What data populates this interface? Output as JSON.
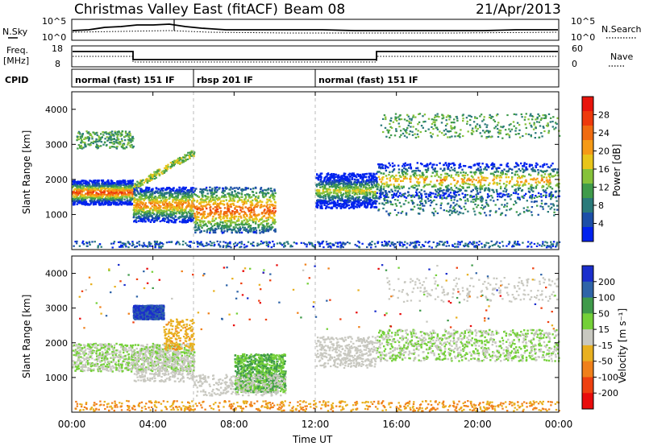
{
  "header": {
    "title": "Christmas Valley East (fitACF)",
    "beam": "Beam 08",
    "date": "21/Apr/2013"
  },
  "noise_panel": {
    "left_label": "N.Sky",
    "right_label": "N.Search",
    "tick_top": "10^5",
    "tick_bottom": "10^0",
    "right_tick_top": "10^5",
    "right_tick_bottom": "10^0"
  },
  "freq_panel": {
    "left_label_1": "Freq.",
    "left_label_2": "[MHz]",
    "right_label": "Nave",
    "tick_top": "18",
    "tick_bottom": "8",
    "right_tick_top": "60",
    "right_tick_bottom": "0"
  },
  "cpid_panel": {
    "label": "CPID",
    "segments": [
      {
        "label": "normal (fast) 151 IF",
        "start_hour": 0,
        "end_hour": 6
      },
      {
        "label": "rbsp 201 IF",
        "start_hour": 6,
        "end_hour": 12
      },
      {
        "label": "normal (fast) 151 IF",
        "start_hour": 12,
        "end_hour": 24
      }
    ]
  },
  "power_panel": {
    "ylabel": "Slant Range [km]",
    "yticks": [
      "1000",
      "2000",
      "3000",
      "4000"
    ],
    "colorbar_label": "Power [dB]",
    "colorbar_ticks": [
      "4",
      "8",
      "12",
      "16",
      "20",
      "24",
      "28"
    ],
    "colors": [
      "#0022ee",
      "#1c4fa8",
      "#2a7a7a",
      "#3f9b4a",
      "#86c23a",
      "#e8c51a",
      "#f59a16",
      "#f06b10",
      "#ee3a0c",
      "#e8140c"
    ]
  },
  "velocity_panel": {
    "ylabel": "Slant Range [km]",
    "yticks": [
      "1000",
      "2000",
      "3000",
      "4000"
    ],
    "colorbar_label": "Velocity [m s⁻¹]",
    "colorbar_ticks": [
      "200",
      "100",
      "50",
      "15",
      "-15",
      "-50",
      "-100",
      "-200"
    ],
    "colors": [
      "#1a2ecc",
      "#2f64a8",
      "#3f9a4a",
      "#74d038",
      "#c8c8c0",
      "#e8b020",
      "#f0801a",
      "#ee4010",
      "#e80c0c"
    ]
  },
  "xaxis": {
    "label": "Time UT",
    "ticks": [
      "00:00",
      "04:00",
      "08:00",
      "12:00",
      "16:00",
      "20:00",
      "00:00"
    ]
  },
  "chart_data": {
    "type": "heatmap",
    "title": "Christmas Valley East (fitACF)",
    "xlabel": "Time UT",
    "ylabel": "Slant Range [km]",
    "xlim": [
      0,
      24
    ],
    "ylim": [
      0,
      4500
    ],
    "series": [
      {
        "name": "Power [dB]",
        "range": [
          0,
          30
        ],
        "main_echo_bands": [
          {
            "start_hour": 0.0,
            "end_hour": 3.0,
            "range_km": [
              1500,
              1800
            ],
            "power_db": 26
          },
          {
            "start_hour": 3.0,
            "end_hour": 6.0,
            "range_km": [
              1000,
              1600
            ],
            "power_db": 22
          },
          {
            "start_hour": 6.0,
            "end_hour": 10.0,
            "range_km": [
              700,
              1600
            ],
            "power_db": 24
          },
          {
            "start_hour": 12.0,
            "end_hour": 15.0,
            "range_km": [
              1400,
              2000
            ],
            "power_db": 16
          },
          {
            "start_hour": 15.0,
            "end_hour": 24.0,
            "range_km": [
              1700,
              2300
            ],
            "power_db": 20
          }
        ]
      },
      {
        "name": "Velocity [m s-1]",
        "range": [
          -200,
          200
        ],
        "main_echo_bands": [
          {
            "start_hour": 0.0,
            "end_hour": 6.0,
            "range_km": [
              1200,
              2000
            ],
            "velocity": 0
          },
          {
            "start_hour": 3.0,
            "end_hour": 4.5,
            "range_km": [
              2700,
              3100
            ],
            "velocity": 150
          },
          {
            "start_hour": 8.0,
            "end_hour": 10.5,
            "range_km": [
              600,
              1700
            ],
            "velocity": 30
          },
          {
            "start_hour": 15.0,
            "end_hour": 24.0,
            "range_km": [
              1500,
              2400
            ],
            "velocity": 0
          }
        ]
      }
    ]
  }
}
